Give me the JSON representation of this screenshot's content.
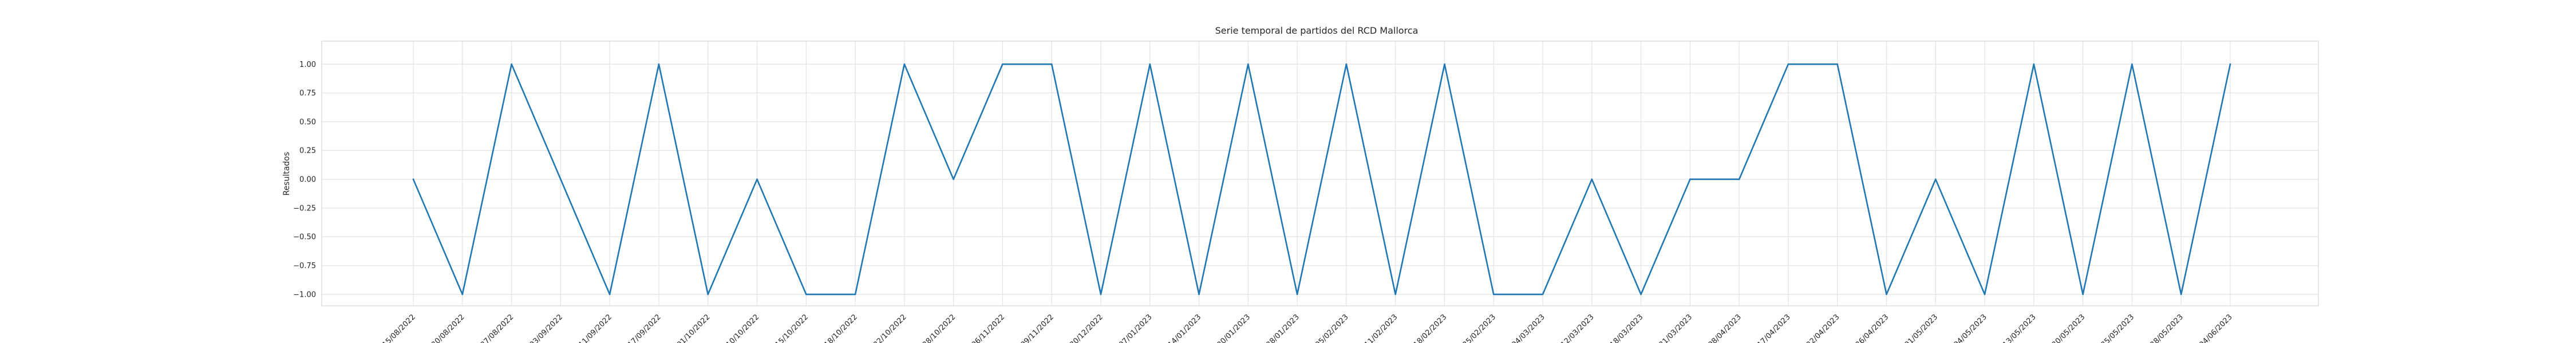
{
  "chart_data": {
    "type": "line",
    "title": "Serie temporal de partidos del RCD Mallorca",
    "xlabel": "",
    "ylabel": "Resultados",
    "ylim": [
      -1.1,
      1.2
    ],
    "yticks": [
      -1.0,
      -0.75,
      -0.5,
      -0.25,
      0.0,
      0.25,
      0.5,
      0.75,
      1.0
    ],
    "ytick_labels": [
      "−1.00",
      "−0.75",
      "−0.50",
      "−0.25",
      "0.00",
      "0.25",
      "0.50",
      "0.75",
      "1.00"
    ],
    "grid": true,
    "line_color": "#1f77b4",
    "x": [
      "15/08/2022",
      "20/08/2022",
      "27/08/2022",
      "03/09/2022",
      "11/09/2022",
      "17/09/2022",
      "01/10/2022",
      "10/10/2022",
      "15/10/2022",
      "18/10/2022",
      "22/10/2022",
      "28/10/2022",
      "06/11/2022",
      "09/11/2022",
      "30/12/2022",
      "07/01/2023",
      "14/01/2023",
      "20/01/2023",
      "28/01/2023",
      "05/02/2023",
      "11/02/2023",
      "18/02/2023",
      "25/02/2023",
      "04/03/2023",
      "12/03/2023",
      "18/03/2023",
      "31/03/2023",
      "08/04/2023",
      "17/04/2023",
      "22/04/2023",
      "26/04/2023",
      "01/05/2023",
      "04/05/2023",
      "13/05/2023",
      "20/05/2023",
      "25/05/2023",
      "28/05/2023",
      "04/06/2023"
    ],
    "series": [
      {
        "values": [
          0,
          -1,
          1,
          0,
          -1,
          1,
          -1,
          0,
          -1,
          -1,
          1,
          0,
          1,
          1,
          -1,
          1,
          -1,
          1,
          -1,
          1,
          -1,
          1,
          -1,
          -1,
          0,
          -1,
          0,
          0,
          1,
          1,
          -1,
          0,
          -1,
          1,
          -1,
          1,
          -1,
          1
        ]
      }
    ]
  }
}
